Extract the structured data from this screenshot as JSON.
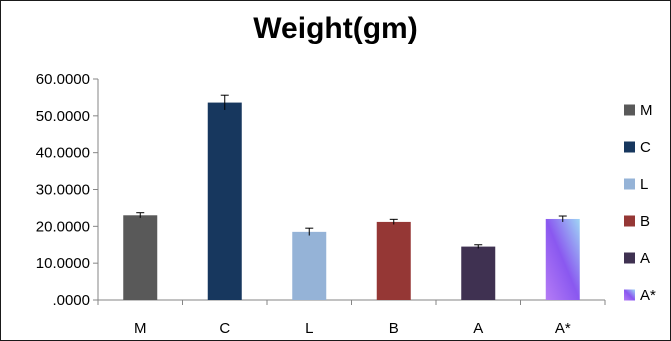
{
  "chart_data": {
    "type": "bar",
    "title": "Weight(gm)",
    "xlabel": "",
    "ylabel": "",
    "categories": [
      "M",
      "C",
      "L",
      "B",
      "A",
      "A*"
    ],
    "values": [
      23.0,
      53.6,
      18.5,
      21.2,
      14.5,
      22.0
    ],
    "error": [
      0.7,
      2.0,
      1.0,
      0.7,
      0.5,
      0.8
    ],
    "ylim": [
      0,
      60
    ],
    "yticks": [
      0,
      10,
      20,
      30,
      40,
      50,
      60
    ],
    "ytick_labels": [
      ".0000",
      "10.0000",
      "20.0000",
      "30.0000",
      "40.0000",
      "50.0000",
      "60.0000"
    ],
    "grid": false,
    "legend_position": "right",
    "legend": [
      "M",
      "C",
      "L",
      "B",
      "A",
      "A*"
    ],
    "colors": [
      "#595959",
      "#17375e",
      "#95b3d7",
      "#953735",
      "#3f3151",
      "gradient"
    ],
    "gradient_colors": [
      "#b57cf5",
      "#8a58f0",
      "#9fd6f5"
    ]
  }
}
